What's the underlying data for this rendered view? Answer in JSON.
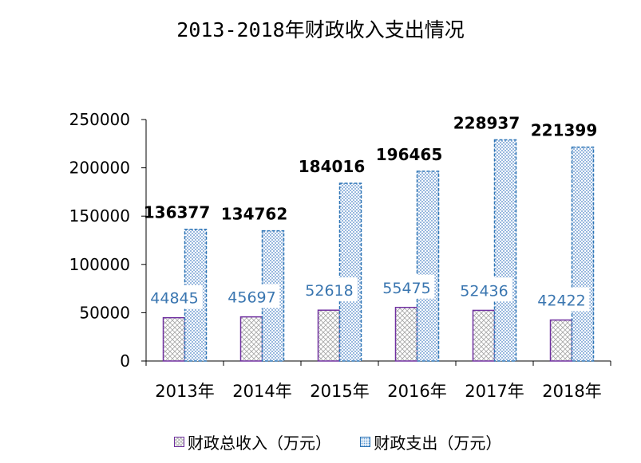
{
  "chart_data": {
    "type": "bar",
    "title": "2013-2018年财政收入支出情况",
    "categories": [
      "2013年",
      "2014年",
      "2015年",
      "2016年",
      "2017年",
      "2018年"
    ],
    "series": [
      {
        "name": "财政总收入（万元）",
        "values": [
          44845,
          45697,
          52618,
          55475,
          52436,
          42422
        ],
        "color": "#7030A0"
      },
      {
        "name": "财政支出（万元）",
        "values": [
          136377,
          134762,
          184016,
          196465,
          228937,
          221399
        ],
        "color": "#2E75B6"
      }
    ],
    "ylim": [
      0,
      250000
    ],
    "yticks": [
      "0",
      "50000",
      "100000",
      "150000",
      "200000",
      "250000"
    ],
    "grid": false,
    "legend": "bottom"
  }
}
